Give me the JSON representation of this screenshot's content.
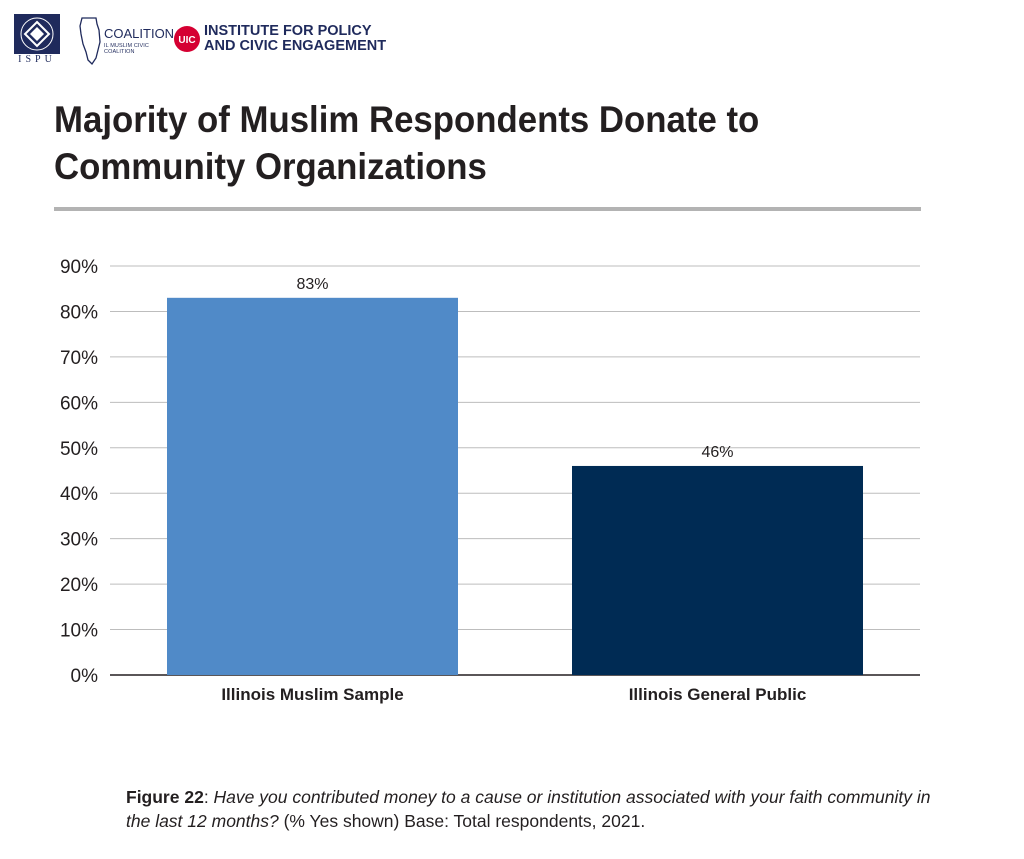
{
  "header": {
    "ispu_label": "ISPU",
    "coalition_label": "COALITION",
    "coalition_prefix": "THE",
    "coalition_sub": "IL MUSLIM CIVIC COALITION",
    "uic_badge": "UIC",
    "uic_label": "INSTITUTE FOR POLICY\nAND CIVIC ENGAGEMENT"
  },
  "title": "Majority of Muslim Respondents Donate to Community Organizations",
  "chart_data": {
    "type": "bar",
    "categories": [
      "Illinois Muslim Sample",
      "Illinois General Public"
    ],
    "values": [
      83,
      46
    ],
    "value_labels": [
      "83%",
      "46%"
    ],
    "bar_colors": [
      "#508ac8",
      "#002b54"
    ],
    "yticks": [
      "0%",
      "10%",
      "20%",
      "30%",
      "40%",
      "50%",
      "60%",
      "70%",
      "80%",
      "90%"
    ],
    "ylim": [
      0,
      90
    ],
    "grid": true
  },
  "caption": {
    "label": "Figure 22",
    "question": "Have you contributed money to a cause or institution associated with your faith community in the last 12 months?",
    "note": "(% Yes shown) Base: Total respondents, 2021."
  }
}
